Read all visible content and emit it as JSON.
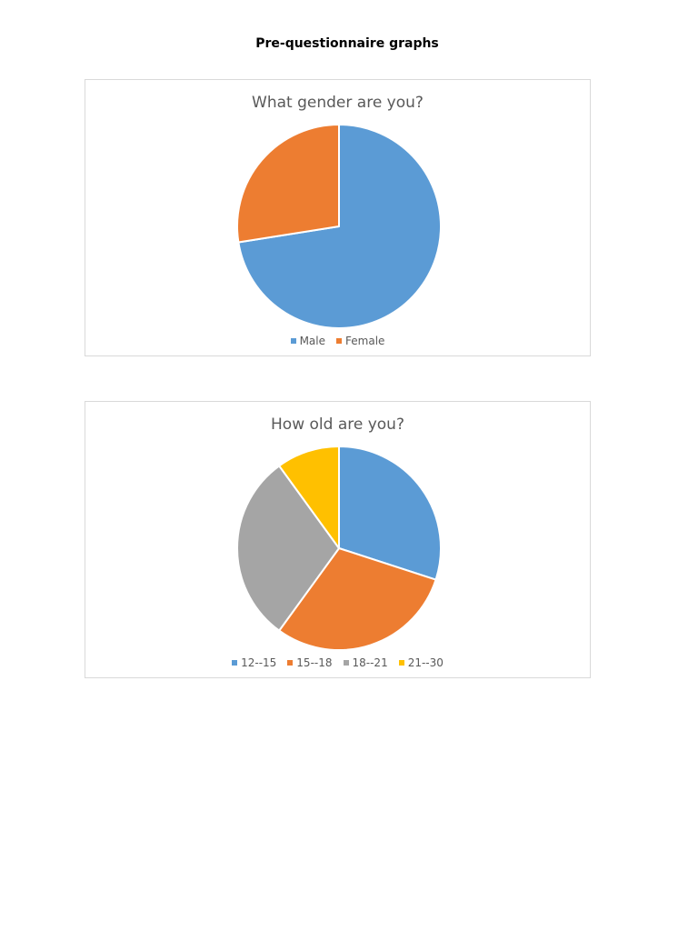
{
  "page": {
    "title": "Pre-questionnaire graphs"
  },
  "chart_data": [
    {
      "type": "pie",
      "title": "What gender are you?",
      "categories": [
        "Male",
        "Female"
      ],
      "values": [
        72.5,
        27.5
      ],
      "colors": [
        "#5b9bd5",
        "#ed7d31"
      ],
      "legend": "bottom"
    },
    {
      "type": "pie",
      "title": "How old are you?",
      "categories": [
        "12--15",
        "15--18",
        "18--21",
        "21--30"
      ],
      "values": [
        30,
        30,
        30,
        10
      ],
      "colors": [
        "#5b9bd5",
        "#ed7d31",
        "#a5a5a5",
        "#ffc000"
      ],
      "legend": "bottom"
    }
  ]
}
